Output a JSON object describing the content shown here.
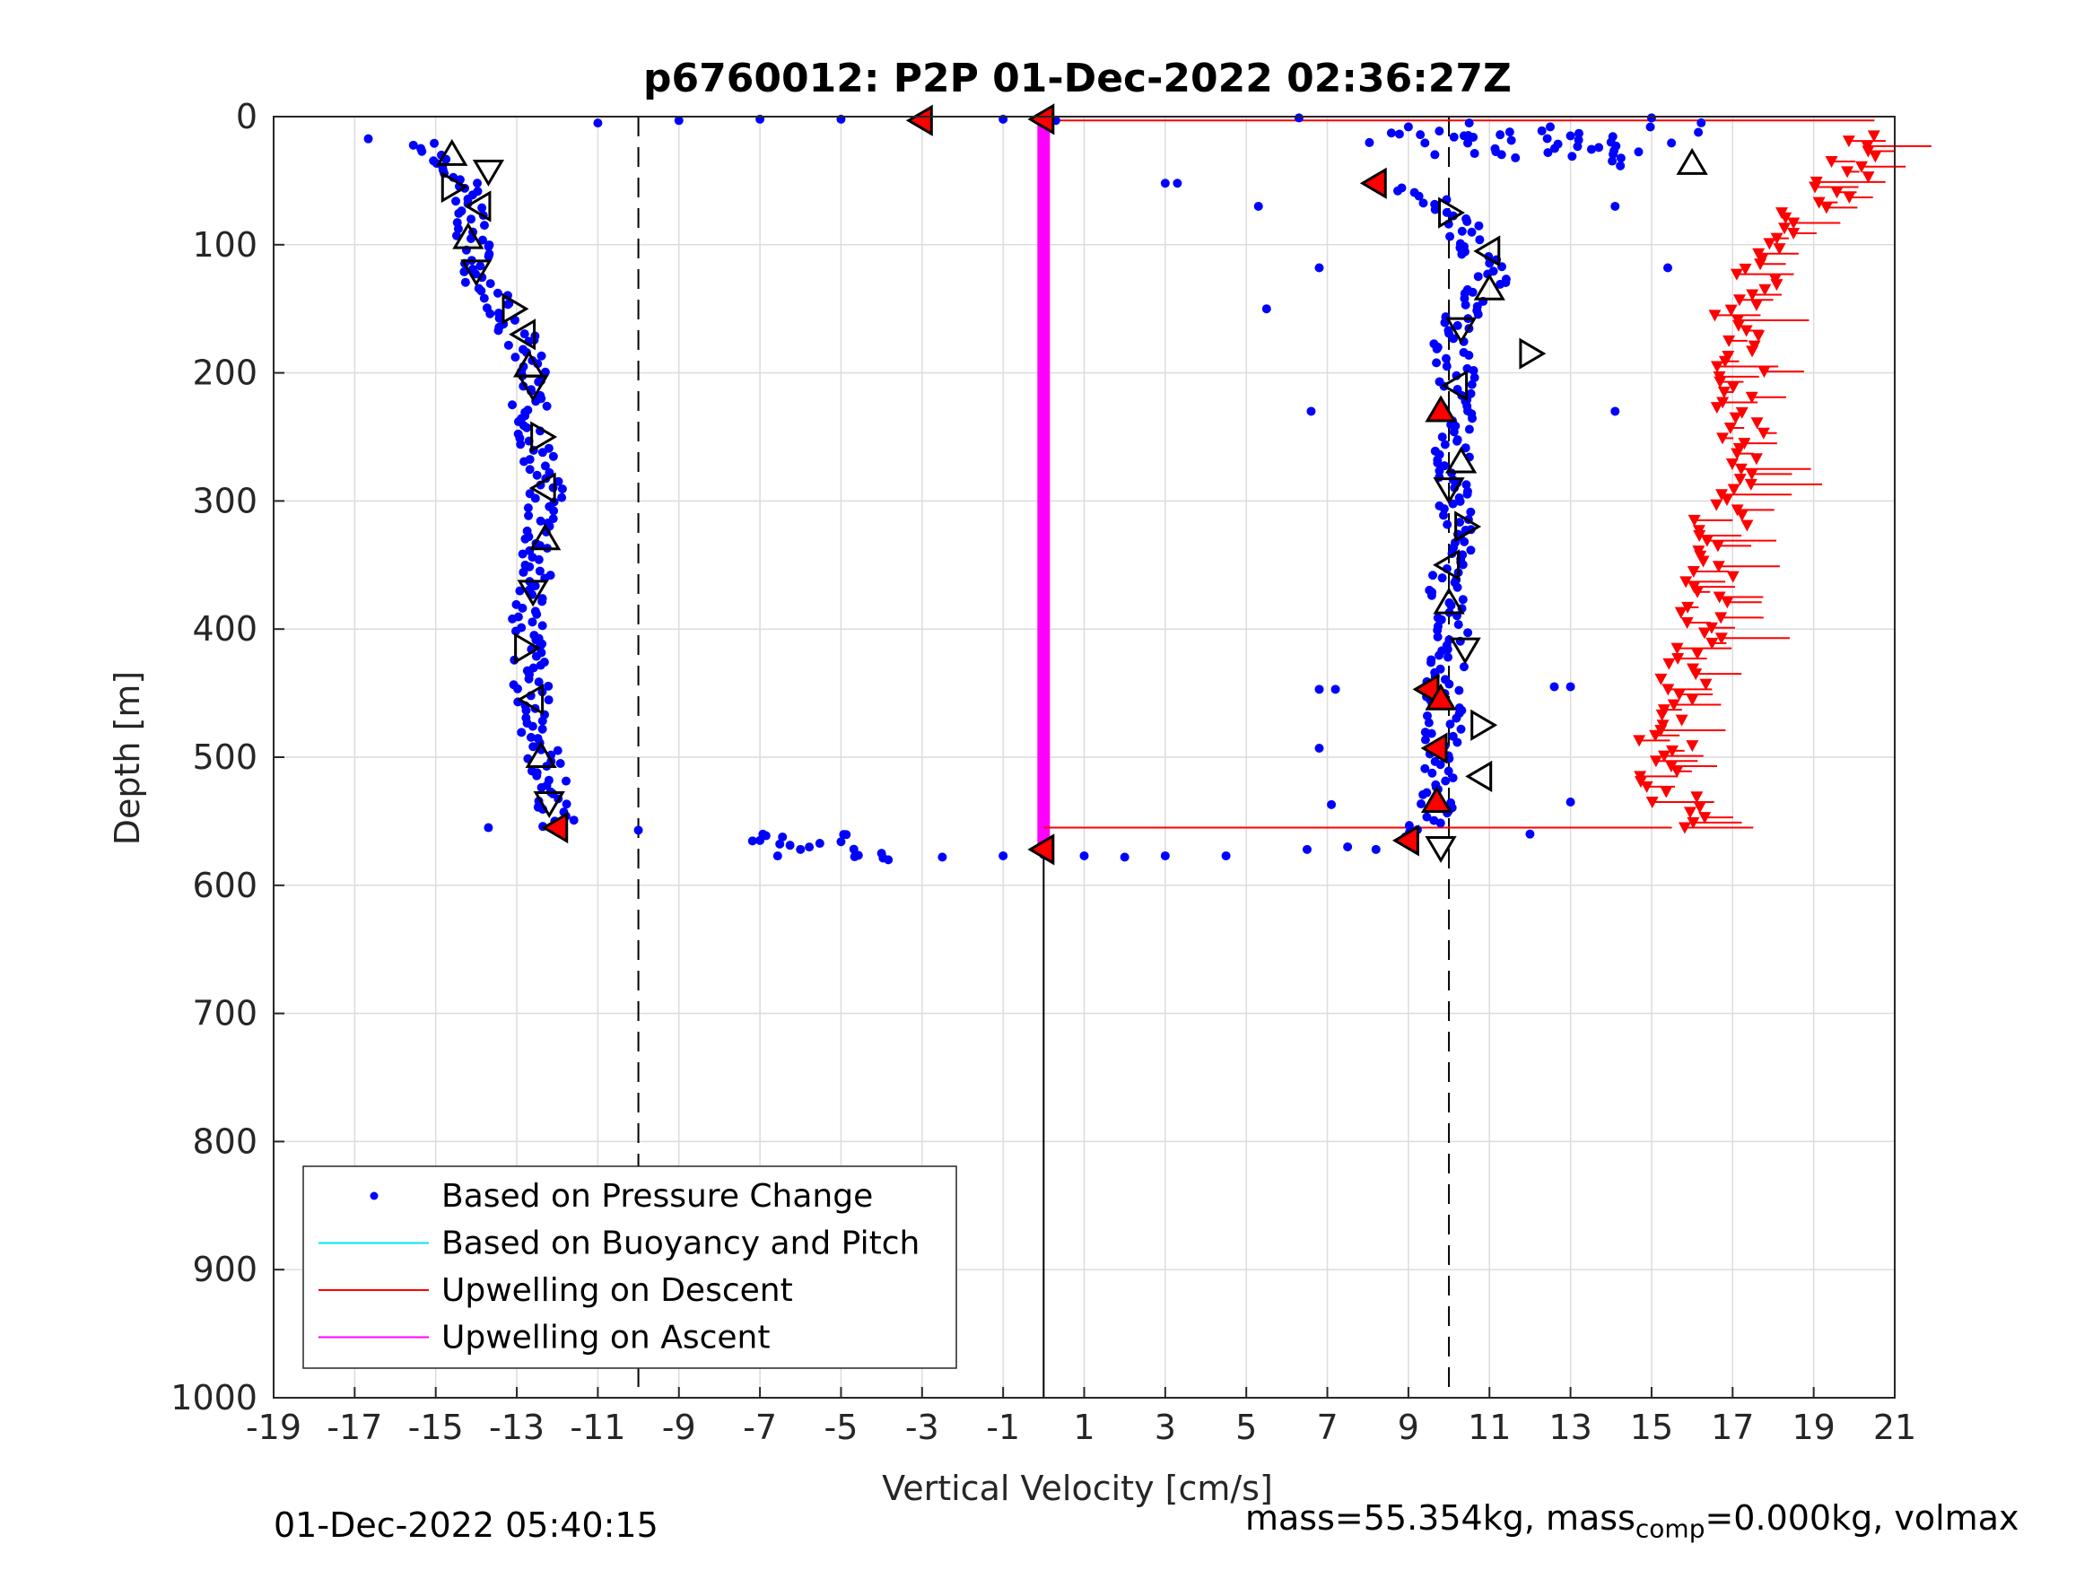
{
  "chart_data": {
    "type": "scatter",
    "title": "p6760012: P2P 01-Dec-2022 02:36:27Z",
    "xlabel": "Vertical Velocity [cm/s]",
    "ylabel": "Depth [m]",
    "xlim": [
      -19,
      21
    ],
    "ylim": [
      0,
      1000
    ],
    "y_reversed": true,
    "grid": true,
    "x_ticks": [
      "-19",
      "-17",
      "-15",
      "-13",
      "-11",
      "-9",
      "-7",
      "-5",
      "-3",
      "-1",
      "1",
      "3",
      "5",
      "7",
      "9",
      "11",
      "13",
      "15",
      "17",
      "19",
      "21"
    ],
    "y_ticks": [
      "0",
      "100",
      "200",
      "300",
      "400",
      "500",
      "600",
      "700",
      "800",
      "900",
      "1000"
    ],
    "x_tick_values": [
      -19,
      -17,
      -15,
      -13,
      -11,
      -9,
      -7,
      -5,
      -3,
      -1,
      1,
      3,
      5,
      7,
      9,
      11,
      13,
      15,
      17,
      19,
      21
    ],
    "y_tick_values": [
      0,
      100,
      200,
      300,
      400,
      500,
      600,
      700,
      800,
      900,
      1000
    ],
    "reference_lines": {
      "dashed_x": [
        -10,
        10
      ],
      "solid_x": 0,
      "solid_x_depth_range": [
        570,
        1000
      ]
    },
    "legend": {
      "placement": "bottom-left",
      "entries": [
        {
          "label": "Based on Pressure Change",
          "color": "#0000ff",
          "marker": "dot"
        },
        {
          "label": "Based on Buoyancy and Pitch",
          "color": "#00e5ee",
          "marker": "line"
        },
        {
          "label": "Upwelling on Descent",
          "color": "#ff0000",
          "marker": "line"
        },
        {
          "label": "Upwelling on Ascent",
          "color": "#ff00ff",
          "marker": "line"
        }
      ]
    },
    "series": [
      {
        "name": "Based on Pressure Change",
        "color": "#0000ff",
        "descent_profile": [
          [
            -18.5,
            18
          ],
          [
            -17.5,
            12
          ],
          [
            -16.5,
            20
          ],
          [
            -15.5,
            12
          ],
          [
            -14.5,
            40
          ],
          [
            -14.2,
            60
          ],
          [
            -14.0,
            85
          ],
          [
            -14.1,
            100
          ],
          [
            -13.9,
            125
          ],
          [
            -13.3,
            150
          ],
          [
            -12.9,
            175
          ],
          [
            -12.7,
            200
          ],
          [
            -12.7,
            230
          ],
          [
            -12.5,
            260
          ],
          [
            -12.3,
            290
          ],
          [
            -12.4,
            320
          ],
          [
            -12.6,
            360
          ],
          [
            -12.7,
            400
          ],
          [
            -12.7,
            430
          ],
          [
            -12.6,
            460
          ],
          [
            -12.4,
            490
          ],
          [
            -12.2,
            520
          ],
          [
            -12.0,
            545
          ],
          [
            -12.0,
            555
          ]
        ],
        "ascent_profile": [
          [
            8.5,
            55
          ],
          [
            9.5,
            62
          ],
          [
            10.0,
            75
          ],
          [
            10.4,
            90
          ],
          [
            10.8,
            110
          ],
          [
            11.0,
            130
          ],
          [
            10.3,
            155
          ],
          [
            10.0,
            175
          ],
          [
            10.2,
            200
          ],
          [
            10.2,
            230
          ],
          [
            10.1,
            260
          ],
          [
            10.0,
            290
          ],
          [
            10.3,
            320
          ],
          [
            10.0,
            350
          ],
          [
            9.9,
            380
          ],
          [
            10.2,
            410
          ],
          [
            9.8,
            440
          ],
          [
            9.9,
            470
          ],
          [
            9.8,
            500
          ],
          [
            9.8,
            530
          ],
          [
            9.4,
            555
          ],
          [
            9.0,
            565
          ]
        ],
        "surface_points": [
          [
            -11,
            5
          ],
          [
            -9,
            3
          ],
          [
            -7,
            2
          ],
          [
            -5,
            2
          ],
          [
            -3,
            3
          ],
          [
            -1,
            2
          ],
          [
            0.3,
            3
          ],
          [
            6.3,
            1
          ],
          [
            9,
            8
          ],
          [
            10.5,
            5
          ],
          [
            11.5,
            12
          ],
          [
            12.5,
            8
          ],
          [
            13,
            15
          ],
          [
            14,
            20
          ],
          [
            15,
            1
          ]
        ],
        "bottom_points": [
          [
            -7,
            565
          ],
          [
            -6,
            572
          ],
          [
            -5,
            566
          ],
          [
            -4,
            575
          ],
          [
            -2.5,
            578
          ],
          [
            -1,
            577
          ],
          [
            0,
            576
          ],
          [
            1,
            577
          ],
          [
            2,
            578
          ],
          [
            3,
            577
          ],
          [
            4.5,
            577
          ],
          [
            6.5,
            572
          ],
          [
            7.5,
            570
          ],
          [
            8.2,
            572
          ]
        ],
        "outliers": [
          [
            -13.7,
            555
          ],
          [
            -10,
            557
          ],
          [
            3,
            52
          ],
          [
            3.3,
            52
          ],
          [
            5.3,
            70
          ],
          [
            5.5,
            150
          ],
          [
            6.8,
            118
          ],
          [
            6.6,
            230
          ],
          [
            6.8,
            447
          ],
          [
            7.2,
            447
          ],
          [
            6.8,
            493
          ],
          [
            7.1,
            537
          ],
          [
            14.1,
            230
          ],
          [
            14.1,
            70
          ],
          [
            13.0,
            445
          ],
          [
            12.6,
            445
          ],
          [
            13.0,
            535
          ],
          [
            12.0,
            560
          ],
          [
            15.4,
            118
          ]
        ]
      },
      {
        "name": "Upwelling on Descent",
        "color": "#ff0000",
        "marker_profile": [
          [
            20.5,
            15
          ],
          [
            19.8,
            45
          ],
          [
            18.8,
            75
          ],
          [
            18.0,
            100
          ],
          [
            17.5,
            130
          ],
          [
            17.2,
            160
          ],
          [
            17.3,
            200
          ],
          [
            17.3,
            240
          ],
          [
            17.0,
            270
          ],
          [
            16.7,
            310
          ],
          [
            16.6,
            340
          ],
          [
            16.3,
            380
          ],
          [
            16.0,
            420
          ],
          [
            15.6,
            450
          ],
          [
            15.3,
            480
          ],
          [
            15.4,
            510
          ],
          [
            15.5,
            540
          ],
          [
            16.0,
            555
          ]
        ],
        "connector_lines": [
          {
            "from": [
              0,
              3
            ],
            "to": [
              20.5,
              3
            ]
          },
          {
            "from": [
              0,
              555
            ],
            "to": [
              15.5,
              555
            ]
          }
        ]
      },
      {
        "name": "Upwelling on Ascent",
        "color": "#ff00ff",
        "vertical_bar": {
          "x": 0,
          "depth_from": 3,
          "depth_to": 575
        }
      }
    ],
    "triangle_markers": {
      "open_descent": [
        [
          -14.6,
          30
        ],
        [
          -13.7,
          42
        ],
        [
          -14.6,
          55
        ],
        [
          -13.9,
          70
        ],
        [
          -14.2,
          95
        ],
        [
          -14.0,
          120
        ],
        [
          -13.1,
          150
        ],
        [
          -12.8,
          170
        ],
        [
          -12.7,
          195
        ],
        [
          -12.6,
          210
        ],
        [
          -12.4,
          250
        ],
        [
          -12.3,
          290
        ],
        [
          -12.3,
          330
        ],
        [
          -12.6,
          370
        ],
        [
          -12.8,
          415
        ],
        [
          -12.6,
          455
        ],
        [
          -12.4,
          500
        ],
        [
          -12.2,
          535
        ]
      ],
      "red_descent": [
        [
          -3,
          3
        ],
        [
          0,
          2
        ],
        [
          -12.0,
          555
        ],
        [
          0,
          572
        ]
      ],
      "open_ascent": [
        [
          10.0,
          75
        ],
        [
          11.0,
          105
        ],
        [
          11.0,
          135
        ],
        [
          10.3,
          165
        ],
        [
          12.0,
          185
        ],
        [
          10.2,
          210
        ],
        [
          10.3,
          270
        ],
        [
          10.0,
          290
        ],
        [
          10.4,
          320
        ],
        [
          10.0,
          350
        ],
        [
          10.0,
          380
        ],
        [
          10.4,
          415
        ],
        [
          10.8,
          475
        ],
        [
          10.8,
          515
        ],
        [
          16.0,
          37
        ],
        [
          9.8,
          570
        ]
      ],
      "red_ascent": [
        [
          8.2,
          52
        ],
        [
          9.8,
          230
        ],
        [
          9.5,
          447
        ],
        [
          9.8,
          455
        ],
        [
          9.7,
          493
        ],
        [
          9.7,
          535
        ],
        [
          9.0,
          565
        ]
      ]
    }
  },
  "footer": {
    "timestamp": "01-Dec-2022 05:40:15",
    "mass_prefix": "mass=55.354kg, mass",
    "mass_sub": "comp",
    "mass_suffix": "=0.000kg, volmax"
  }
}
